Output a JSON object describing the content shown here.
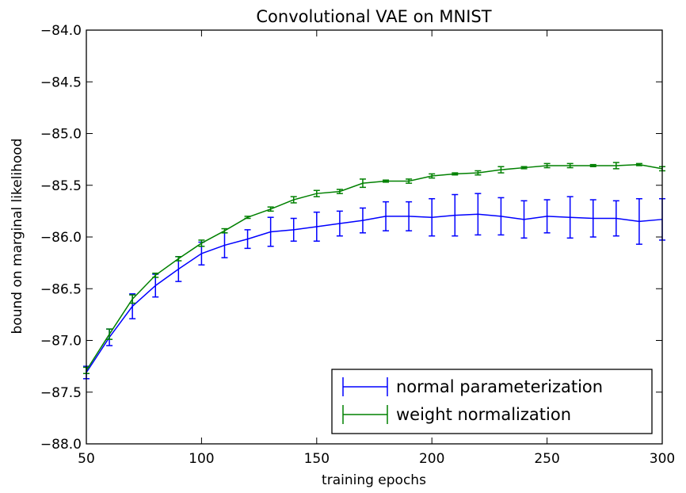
{
  "chart_data": {
    "type": "line",
    "title": "Convolutional VAE on MNIST",
    "xlabel": "training epochs",
    "ylabel": "bound on marginal likelihood",
    "xlim": [
      50,
      300
    ],
    "ylim": [
      -88.0,
      -84.0
    ],
    "xticks": [
      50,
      100,
      150,
      200,
      250,
      300
    ],
    "xtick_labels": [
      "50",
      "100",
      "150",
      "200",
      "250",
      "300"
    ],
    "yticks": [
      -84.0,
      -84.5,
      -85.0,
      -85.5,
      -86.0,
      -86.5,
      -87.0,
      -87.5,
      -88.0
    ],
    "ytick_labels": [
      "−84.0",
      "−84.5",
      "−85.0",
      "−85.5",
      "−86.0",
      "−86.5",
      "−87.0",
      "−87.5",
      "−88.0"
    ],
    "grid": false,
    "legend_position": "lower-right",
    "x": [
      50,
      60,
      70,
      80,
      90,
      100,
      110,
      120,
      130,
      140,
      150,
      160,
      170,
      180,
      190,
      200,
      210,
      220,
      230,
      240,
      250,
      260,
      270,
      280,
      290,
      300
    ],
    "series": [
      {
        "name": "normal parameterization",
        "color": "#0000ff",
        "values": [
          -87.31,
          -86.97,
          -86.67,
          -86.47,
          -86.31,
          -86.16,
          -86.08,
          -86.02,
          -85.95,
          -85.93,
          -85.9,
          -85.87,
          -85.84,
          -85.8,
          -85.8,
          -85.81,
          -85.79,
          -85.78,
          -85.8,
          -85.83,
          -85.8,
          -85.81,
          -85.82,
          -85.82,
          -85.85,
          -85.83
        ],
        "errors": [
          0.06,
          0.08,
          0.12,
          0.11,
          0.12,
          0.11,
          0.12,
          0.09,
          0.14,
          0.11,
          0.14,
          0.12,
          0.12,
          0.14,
          0.14,
          0.18,
          0.2,
          0.2,
          0.18,
          0.18,
          0.16,
          0.2,
          0.18,
          0.17,
          0.22,
          0.2
        ]
      },
      {
        "name": "weight normalization",
        "color": "#008000",
        "values": [
          -87.29,
          -86.94,
          -86.6,
          -86.37,
          -86.21,
          -86.06,
          -85.94,
          -85.81,
          -85.73,
          -85.64,
          -85.58,
          -85.56,
          -85.48,
          -85.46,
          -85.46,
          -85.41,
          -85.39,
          -85.38,
          -85.35,
          -85.33,
          -85.31,
          -85.31,
          -85.31,
          -85.31,
          -85.3,
          -85.34
        ],
        "errors": [
          0.03,
          0.05,
          0.04,
          0.02,
          0.02,
          0.03,
          0.02,
          0.01,
          0.02,
          0.03,
          0.03,
          0.02,
          0.04,
          0.01,
          0.02,
          0.02,
          0.01,
          0.02,
          0.03,
          0.01,
          0.02,
          0.02,
          0.01,
          0.03,
          0.01,
          0.02
        ]
      }
    ]
  }
}
